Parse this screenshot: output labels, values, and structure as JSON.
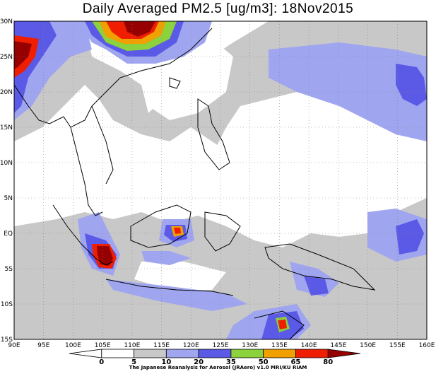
{
  "title": "Daily Averaged PM2.5 [ug/m3]: 18Nov2015",
  "credit": "The Japanese Reanalysis for Aerosol (JRAero) v1.0 MRI/KU RIAM",
  "map": {
    "lon_range": [
      90,
      160
    ],
    "lat_range": [
      -15,
      30
    ],
    "lon_ticks": [
      "90E",
      "95E",
      "100E",
      "105E",
      "110E",
      "115E",
      "120E",
      "125E",
      "130E",
      "135E",
      "140E",
      "145E",
      "150E",
      "155E",
      "160E"
    ],
    "lat_ticks": [
      "30N",
      "25N",
      "20N",
      "15N",
      "10N",
      "5N",
      "EQ",
      "5S",
      "10S",
      "15S"
    ],
    "gridlines": true
  },
  "colorbar": {
    "levels": [
      "0",
      "5",
      "10",
      "20",
      "35",
      "50",
      "65",
      "80"
    ],
    "colors": [
      "#ffffff",
      "#ffffff",
      "#c8c8c8",
      "#a0a5f0",
      "#5a5ae6",
      "#8cd23c",
      "#f0a000",
      "#f01e00",
      "#960000"
    ]
  },
  "field_colors": {
    "gray": "#c8c8c8",
    "light_blue": "#a0a5f0",
    "blue": "#5a5ae6",
    "green": "#8cd23c",
    "orange": "#f0a000",
    "red": "#f01e00",
    "dark_red": "#960000"
  }
}
